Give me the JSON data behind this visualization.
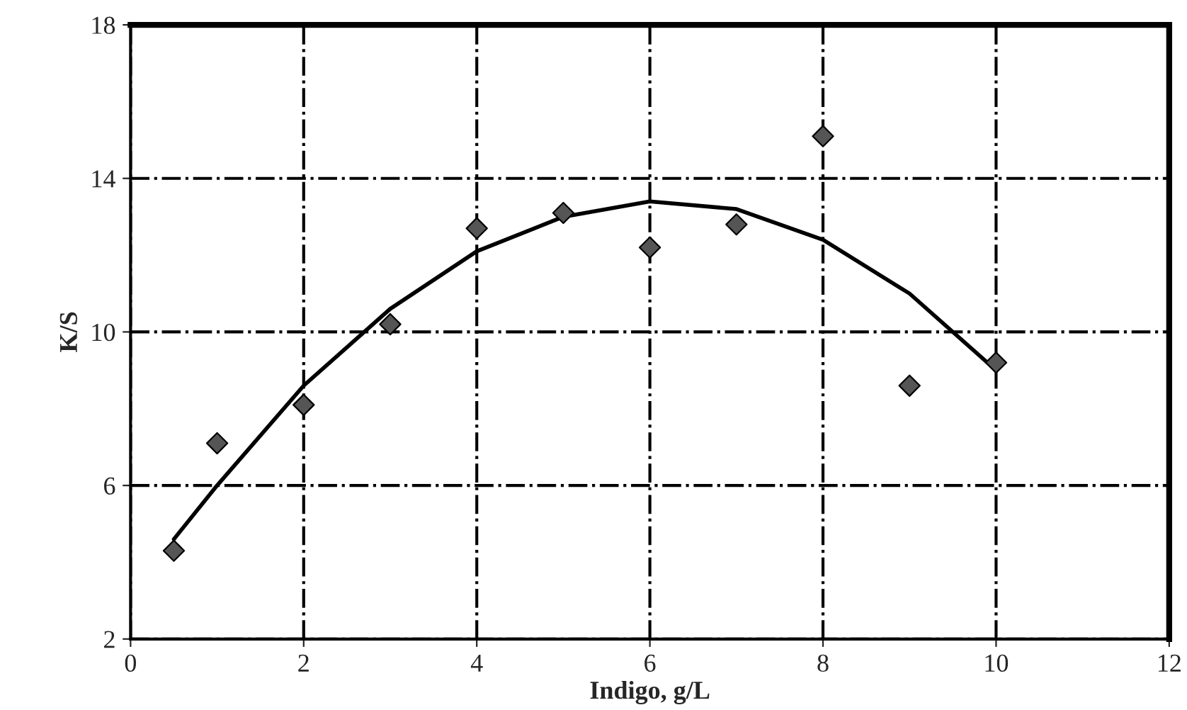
{
  "chart_data": {
    "type": "scatter",
    "xlabel": "Indigo, g/L",
    "ylabel": "K/S",
    "xlim": [
      0,
      12
    ],
    "xticks": [
      0,
      2,
      4,
      6,
      8,
      10,
      12
    ],
    "ylim": [
      2,
      18
    ],
    "yticks": [
      2,
      6,
      10,
      14,
      18
    ],
    "grid": true,
    "series": [
      {
        "marker": "diamond",
        "color": "#555555",
        "x": [
          0.5,
          1,
          2,
          3,
          4,
          5,
          6,
          7,
          8,
          9,
          10
        ],
        "values": [
          4.3,
          7.1,
          8.1,
          10.2,
          12.7,
          13.1,
          12.2,
          12.8,
          15.1,
          8.6,
          9.2
        ]
      },
      {
        "type": "line",
        "marker": "none",
        "color": "#000000",
        "x": [
          0.5,
          1,
          2,
          3,
          4,
          5,
          6,
          7,
          8,
          9,
          10
        ],
        "values": [
          4.6,
          6.0,
          8.6,
          10.6,
          12.1,
          13.0,
          13.4,
          13.2,
          12.4,
          11.0,
          9.0
        ]
      }
    ]
  }
}
